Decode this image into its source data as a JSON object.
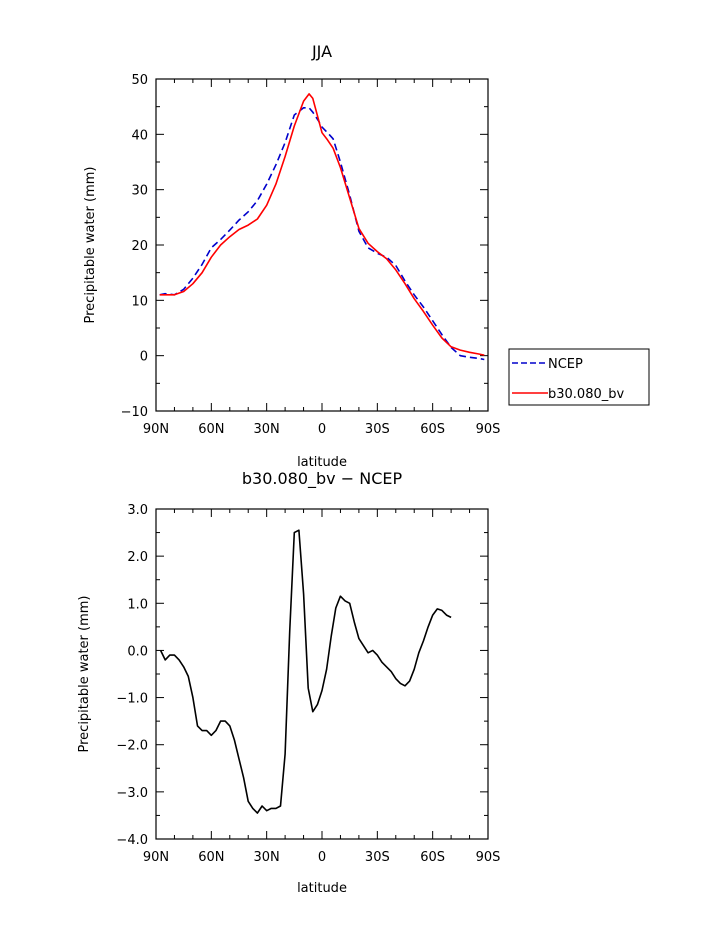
{
  "chart_data": [
    {
      "type": "line",
      "title": "JJA",
      "xlabel": "latitude",
      "ylabel": "Precipitable water (mm)",
      "xlim": [
        -90,
        90
      ],
      "ylim": [
        -10,
        50
      ],
      "x_ticks": [
        {
          "value": -90,
          "label": "90N"
        },
        {
          "value": -60,
          "label": "60N"
        },
        {
          "value": -30,
          "label": "30N"
        },
        {
          "value": 0,
          "label": "0"
        },
        {
          "value": 30,
          "label": "30S"
        },
        {
          "value": 60,
          "label": "60S"
        },
        {
          "value": 90,
          "label": "90S"
        }
      ],
      "y_ticks": [
        {
          "value": -10,
          "label": "−10"
        },
        {
          "value": 0,
          "label": "0"
        },
        {
          "value": 10,
          "label": "10"
        },
        {
          "value": 20,
          "label": "20"
        },
        {
          "value": 30,
          "label": "30"
        },
        {
          "value": 40,
          "label": "40"
        },
        {
          "value": 50,
          "label": "50"
        }
      ],
      "legend_position": "right, outside plot",
      "series": [
        {
          "name": "NCEP",
          "color": "#0000cc",
          "style": "dashed",
          "points": [
            [
              -88,
              11.0
            ],
            [
              -85,
              11.2
            ],
            [
              -80,
              11.0
            ],
            [
              -75,
              12.0
            ],
            [
              -70,
              14.0
            ],
            [
              -65,
              16.5
            ],
            [
              -60,
              19.5
            ],
            [
              -55,
              21.0
            ],
            [
              -50,
              22.7
            ],
            [
              -45,
              24.5
            ],
            [
              -40,
              26.0
            ],
            [
              -35,
              28.0
            ],
            [
              -30,
              31.0
            ],
            [
              -25,
              34.5
            ],
            [
              -20,
              38.5
            ],
            [
              -15,
              43.5
            ],
            [
              -10,
              44.8
            ],
            [
              -7,
              44.8
            ],
            [
              -5,
              44.0
            ],
            [
              -2,
              42.5
            ],
            [
              0,
              41.3
            ],
            [
              3,
              40.3
            ],
            [
              6,
              39.2
            ],
            [
              10,
              35.0
            ],
            [
              15,
              29.0
            ],
            [
              20,
              22.5
            ],
            [
              25,
              19.5
            ],
            [
              30,
              18.5
            ],
            [
              35,
              17.8
            ],
            [
              40,
              16.3
            ],
            [
              45,
              13.5
            ],
            [
              50,
              11.0
            ],
            [
              55,
              8.8
            ],
            [
              60,
              6.3
            ],
            [
              65,
              3.8
            ],
            [
              70,
              1.5
            ],
            [
              75,
              0.0
            ],
            [
              80,
              -0.3
            ],
            [
              85,
              -0.5
            ],
            [
              88,
              -0.7
            ]
          ]
        },
        {
          "name": "b30.080_bv",
          "color": "#ff0000",
          "style": "solid",
          "points": [
            [
              -88,
              11.0
            ],
            [
              -85,
              11.0
            ],
            [
              -80,
              11.0
            ],
            [
              -75,
              11.6
            ],
            [
              -70,
              13.0
            ],
            [
              -65,
              15.0
            ],
            [
              -60,
              17.8
            ],
            [
              -55,
              20.0
            ],
            [
              -50,
              21.5
            ],
            [
              -45,
              22.8
            ],
            [
              -40,
              23.6
            ],
            [
              -35,
              24.7
            ],
            [
              -30,
              27.2
            ],
            [
              -25,
              31.0
            ],
            [
              -20,
              36.0
            ],
            [
              -15,
              41.5
            ],
            [
              -10,
              46.0
            ],
            [
              -7,
              47.3
            ],
            [
              -5,
              46.5
            ],
            [
              -3,
              44.0
            ],
            [
              0,
              40.3
            ],
            [
              3,
              39.0
            ],
            [
              6,
              37.5
            ],
            [
              10,
              34.0
            ],
            [
              15,
              28.5
            ],
            [
              20,
              23.0
            ],
            [
              25,
              20.3
            ],
            [
              30,
              18.8
            ],
            [
              35,
              17.5
            ],
            [
              40,
              15.5
            ],
            [
              45,
              13.0
            ],
            [
              50,
              10.3
            ],
            [
              55,
              8.0
            ],
            [
              60,
              5.5
            ],
            [
              65,
              3.2
            ],
            [
              70,
              1.6
            ],
            [
              75,
              1.0
            ],
            [
              80,
              0.6
            ],
            [
              85,
              0.3
            ],
            [
              88,
              0.1
            ]
          ]
        }
      ]
    },
    {
      "type": "line",
      "title": "b30.080_bv − NCEP",
      "xlabel": "latitude",
      "ylabel": "Precipitable water (mm)",
      "xlim": [
        -90,
        90
      ],
      "ylim": [
        -4,
        3
      ],
      "x_ticks": [
        {
          "value": -90,
          "label": "90N"
        },
        {
          "value": -60,
          "label": "60N"
        },
        {
          "value": -30,
          "label": "30N"
        },
        {
          "value": 0,
          "label": "0"
        },
        {
          "value": 30,
          "label": "30S"
        },
        {
          "value": 60,
          "label": "60S"
        },
        {
          "value": 90,
          "label": "90S"
        }
      ],
      "y_ticks": [
        {
          "value": -4,
          "label": "−4.0"
        },
        {
          "value": -3,
          "label": "−3.0"
        },
        {
          "value": -2,
          "label": "−2.0"
        },
        {
          "value": -1,
          "label": "−1.0"
        },
        {
          "value": 0,
          "label": "0.0"
        },
        {
          "value": 1,
          "label": "1.0"
        },
        {
          "value": 2,
          "label": "2.0"
        },
        {
          "value": 3,
          "label": "3.0"
        }
      ],
      "series": [
        {
          "color": "#000000",
          "style": "solid",
          "points": [
            [
              -87.5,
              0.0
            ],
            [
              -85,
              -0.2
            ],
            [
              -82.5,
              -0.1
            ],
            [
              -80,
              -0.1
            ],
            [
              -77.5,
              -0.2
            ],
            [
              -75,
              -0.35
            ],
            [
              -72.5,
              -0.55
            ],
            [
              -70,
              -1.0
            ],
            [
              -67.5,
              -1.6
            ],
            [
              -65,
              -1.7
            ],
            [
              -62.5,
              -1.7
            ],
            [
              -60,
              -1.8
            ],
            [
              -57.5,
              -1.7
            ],
            [
              -55,
              -1.5
            ],
            [
              -52.5,
              -1.5
            ],
            [
              -50,
              -1.6
            ],
            [
              -47.5,
              -1.9
            ],
            [
              -45,
              -2.3
            ],
            [
              -42.5,
              -2.7
            ],
            [
              -40,
              -3.2
            ],
            [
              -37.5,
              -3.35
            ],
            [
              -35,
              -3.45
            ],
            [
              -32.5,
              -3.3
            ],
            [
              -30,
              -3.4
            ],
            [
              -27.5,
              -3.35
            ],
            [
              -25,
              -3.35
            ],
            [
              -22.5,
              -3.3
            ],
            [
              -20,
              -2.2
            ],
            [
              -17.5,
              0.4
            ],
            [
              -15,
              2.5
            ],
            [
              -12.5,
              2.55
            ],
            [
              -10,
              1.2
            ],
            [
              -7.5,
              -0.8
            ],
            [
              -5,
              -1.3
            ],
            [
              -2.5,
              -1.15
            ],
            [
              0,
              -0.85
            ],
            [
              2.5,
              -0.4
            ],
            [
              5,
              0.3
            ],
            [
              7.5,
              0.9
            ],
            [
              10,
              1.15
            ],
            [
              12.5,
              1.05
            ],
            [
              15,
              1.0
            ],
            [
              17.5,
              0.6
            ],
            [
              20,
              0.25
            ],
            [
              22.5,
              0.1
            ],
            [
              25,
              -0.05
            ],
            [
              27.5,
              0.0
            ],
            [
              30,
              -0.1
            ],
            [
              32.5,
              -0.25
            ],
            [
              35,
              -0.35
            ],
            [
              37.5,
              -0.45
            ],
            [
              40,
              -0.6
            ],
            [
              42.5,
              -0.7
            ],
            [
              45,
              -0.75
            ],
            [
              47.5,
              -0.65
            ],
            [
              50,
              -0.4
            ],
            [
              52.5,
              -0.05
            ],
            [
              55,
              0.2
            ],
            [
              57.5,
              0.5
            ],
            [
              60,
              0.75
            ],
            [
              62.5,
              0.88
            ],
            [
              65,
              0.85
            ],
            [
              67.5,
              0.75
            ],
            [
              70,
              0.7
            ]
          ]
        }
      ]
    }
  ]
}
